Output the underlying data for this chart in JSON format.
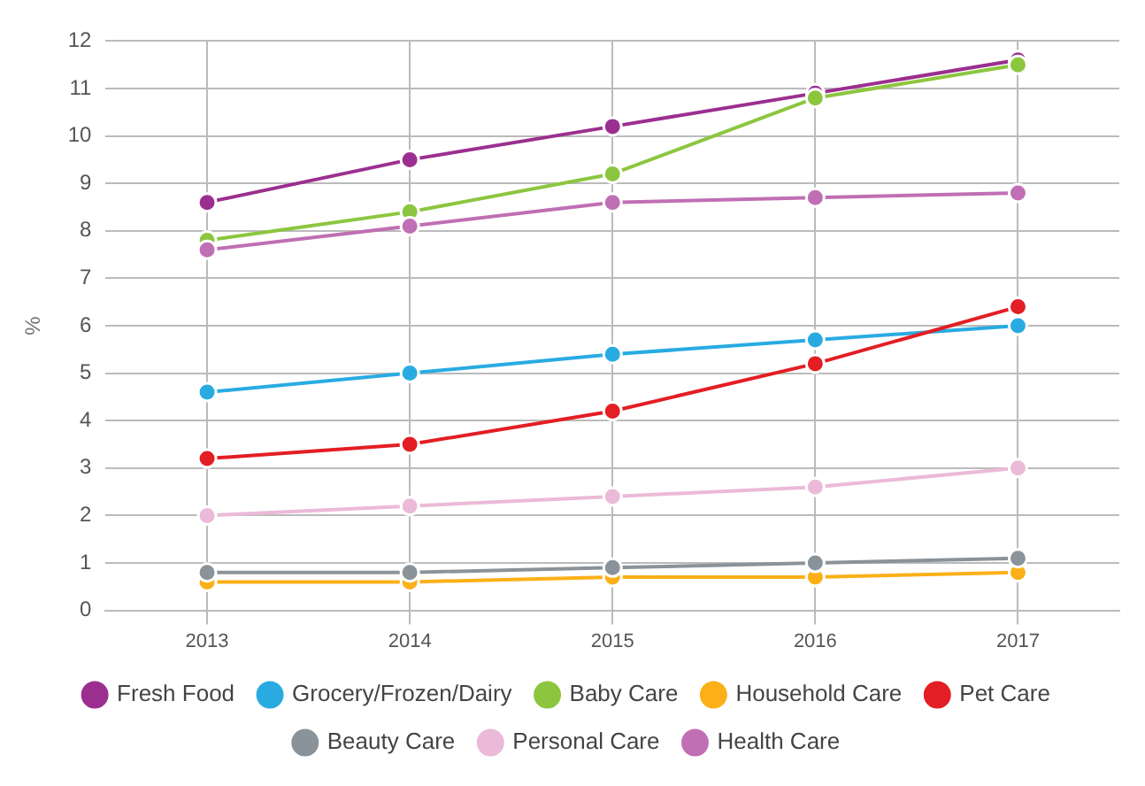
{
  "chart_data": {
    "type": "line",
    "ylabel": "%",
    "categories": [
      "2013",
      "2014",
      "2015",
      "2016",
      "2017"
    ],
    "series": [
      {
        "name": "Fresh Food",
        "color": "#9b2f8f",
        "values": [
          8.6,
          9.5,
          10.2,
          10.9,
          11.6
        ]
      },
      {
        "name": "Grocery/Frozen/Dairy",
        "color": "#29abe2",
        "values": [
          4.6,
          5.0,
          5.4,
          5.7,
          6.0
        ]
      },
      {
        "name": "Baby Care",
        "color": "#8cc63f",
        "values": [
          7.8,
          8.4,
          9.2,
          10.8,
          11.5
        ]
      },
      {
        "name": "Household Care",
        "color": "#fbb017",
        "values": [
          0.6,
          0.6,
          0.7,
          0.7,
          0.8
        ]
      },
      {
        "name": "Pet Care",
        "color": "#e31e24",
        "values": [
          3.2,
          3.5,
          4.2,
          5.2,
          6.4
        ]
      },
      {
        "name": "Beauty Care",
        "color": "#8a9399",
        "values": [
          0.8,
          0.8,
          0.9,
          1.0,
          1.1
        ]
      },
      {
        "name": "Personal Care",
        "color": "#ebbad8",
        "values": [
          2.0,
          2.2,
          2.4,
          2.6,
          3.0
        ]
      },
      {
        "name": "Health Care",
        "color": "#c06fb4",
        "values": [
          7.6,
          8.1,
          8.6,
          8.7,
          8.8
        ]
      }
    ],
    "ylim": [
      0,
      12
    ],
    "yticks": [
      0,
      1,
      2,
      3,
      4,
      5,
      6,
      7,
      8,
      9,
      10,
      11,
      12
    ],
    "grid": true,
    "legend": "bottom",
    "marker": "circle",
    "line_style": "solid"
  }
}
